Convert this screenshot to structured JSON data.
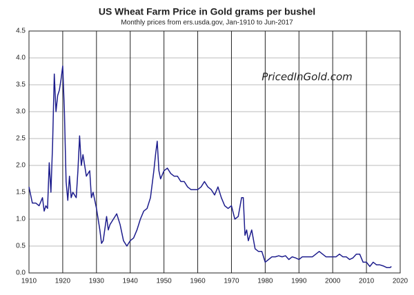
{
  "chart_data": {
    "type": "line",
    "title": "US Wheat Farm Price in Gold grams per bushel",
    "subtitle": "Monthly prices from ers.usda.gov, Jan-1910 to Jun-2017",
    "annotation": "PricedInGold.com",
    "x": [
      1910,
      1911,
      1912,
      1913,
      1914,
      1914.5,
      1915,
      1915.5,
      1916,
      1916.5,
      1917,
      1917.5,
      1918,
      1918.5,
      1919,
      1919.5,
      1920,
      1920.5,
      1921,
      1921.5,
      1922,
      1922.5,
      1923,
      1924,
      1924.5,
      1925,
      1925.5,
      1926,
      1926.5,
      1927,
      1928,
      1928.5,
      1929,
      1930,
      1931,
      1931.5,
      1932,
      1933,
      1933.5,
      1934,
      1935,
      1936,
      1937,
      1938,
      1939,
      1940,
      1941,
      1942,
      1943,
      1944,
      1945,
      1946,
      1947,
      1947.5,
      1948,
      1948.5,
      1949,
      1950,
      1951,
      1952,
      1953,
      1954,
      1955,
      1956,
      1957,
      1958,
      1959,
      1960,
      1961,
      1962,
      1963,
      1964,
      1965,
      1966,
      1967,
      1968,
      1969,
      1970,
      1971,
      1972,
      1973,
      1973.5,
      1974,
      1974.5,
      1975,
      1976,
      1977,
      1978,
      1979,
      1980,
      1981,
      1982,
      1983,
      1984,
      1985,
      1986,
      1987,
      1988,
      1989,
      1990,
      1991,
      1992,
      1993,
      1994,
      1995,
      1996,
      1997,
      1998,
      1999,
      2000,
      2001,
      2002,
      2003,
      2004,
      2005,
      2006,
      2007,
      2008,
      2009,
      2010,
      2011,
      2012,
      2013,
      2014,
      2015,
      2016,
      2017,
      2017.4
    ],
    "series": [
      {
        "name": "Wheat price in gold grams per bushel",
        "color": "#1c1c8c",
        "values": [
          1.6,
          1.3,
          1.3,
          1.25,
          1.4,
          1.15,
          1.25,
          1.2,
          2.05,
          1.5,
          2.4,
          3.7,
          3.0,
          3.3,
          3.4,
          3.6,
          3.85,
          3.0,
          1.7,
          1.35,
          1.8,
          1.4,
          1.5,
          1.4,
          1.9,
          2.55,
          2.0,
          2.2,
          2.0,
          1.8,
          1.9,
          1.4,
          1.5,
          1.2,
          0.8,
          0.55,
          0.6,
          1.05,
          0.8,
          0.9,
          1.0,
          1.1,
          0.9,
          0.6,
          0.5,
          0.6,
          0.65,
          0.8,
          1.0,
          1.15,
          1.2,
          1.4,
          1.9,
          2.2,
          2.45,
          1.9,
          1.75,
          1.9,
          1.95,
          1.85,
          1.8,
          1.8,
          1.7,
          1.7,
          1.6,
          1.55,
          1.55,
          1.55,
          1.6,
          1.7,
          1.6,
          1.55,
          1.45,
          1.6,
          1.4,
          1.25,
          1.2,
          1.25,
          1.0,
          1.05,
          1.4,
          1.4,
          0.7,
          0.8,
          0.6,
          0.8,
          0.45,
          0.4,
          0.4,
          0.2,
          0.25,
          0.3,
          0.3,
          0.32,
          0.3,
          0.32,
          0.25,
          0.3,
          0.28,
          0.25,
          0.3,
          0.3,
          0.3,
          0.3,
          0.35,
          0.4,
          0.35,
          0.3,
          0.3,
          0.3,
          0.3,
          0.35,
          0.3,
          0.3,
          0.25,
          0.28,
          0.35,
          0.35,
          0.2,
          0.2,
          0.12,
          0.2,
          0.15,
          0.15,
          0.13,
          0.1,
          0.1,
          0.12
        ]
      }
    ],
    "xlim": [
      1910,
      2020
    ],
    "xticks": [
      1910,
      1920,
      1930,
      1940,
      1950,
      1960,
      1970,
      1980,
      1990,
      2000,
      2010,
      2020
    ],
    "ylim": [
      0,
      4.5
    ],
    "yticks": [
      {
        "value": 0,
        "label": "0.0"
      },
      0.5,
      {
        "value": 1,
        "label": "1.0"
      },
      1.5,
      {
        "value": 2,
        "label": "2.0"
      },
      2.5,
      {
        "value": 3,
        "label": "3.0"
      },
      3.5,
      {
        "value": 4,
        "label": "4.0"
      },
      4.5
    ],
    "grid": true
  }
}
